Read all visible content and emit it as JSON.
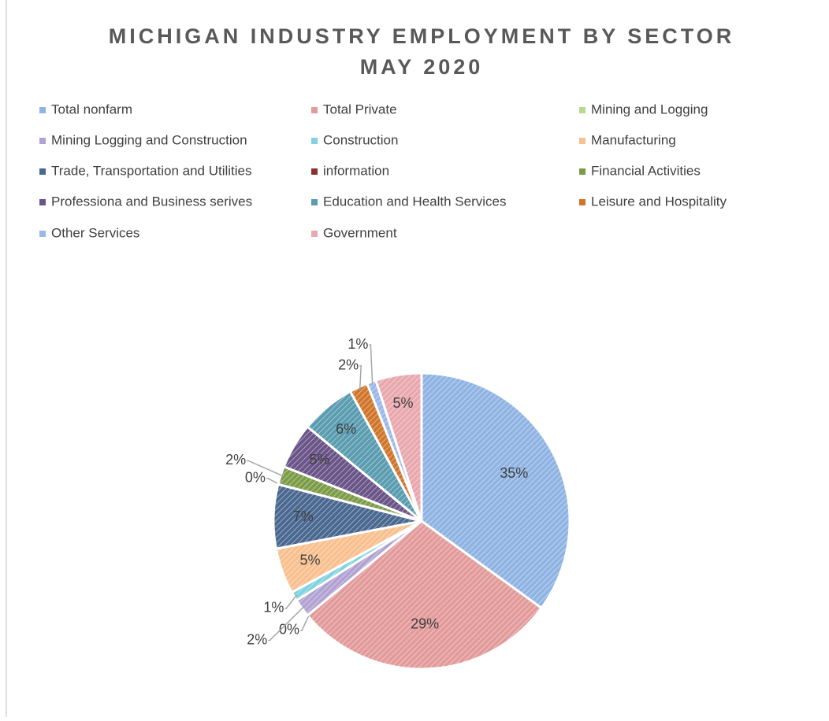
{
  "chart_data": {
    "type": "pie",
    "title": "MICHIGAN INDUSTRY EMPLOYMENT BY SECTOR",
    "subtitle": "MAY 2020",
    "categories": [
      "Total nonfarm",
      "Total Private",
      "Mining and Logging",
      "Mining Logging and Construction",
      "Construction",
      "Manufacturing",
      "Trade, Transportation and Utilities",
      "information",
      "Financial Activities",
      "Professiona and Business serives",
      "Education and Health Services",
      "Leisure and Hospitality",
      "Other Services",
      "Government"
    ],
    "values": [
      35,
      29,
      0,
      2,
      1,
      5,
      7,
      0,
      2,
      5,
      6,
      2,
      1,
      5
    ],
    "value_labels": [
      "35%",
      "29%",
      "0%",
      "2%",
      "1%",
      "5%",
      "7%",
      "0%",
      "2%",
      "5%",
      "6%",
      "2%",
      "1%",
      "5%"
    ],
    "colors": [
      "#8fb4e3",
      "#e39a9a",
      "#b5d98f",
      "#b2a2d3",
      "#7fd2e0",
      "#f9c08f",
      "#4a6890",
      "#8b3030",
      "#7c9c48",
      "#6a5488",
      "#5a9cb0",
      "#d0762c",
      "#9bb8e8",
      "#e8a8ae"
    ],
    "legend": "top"
  }
}
